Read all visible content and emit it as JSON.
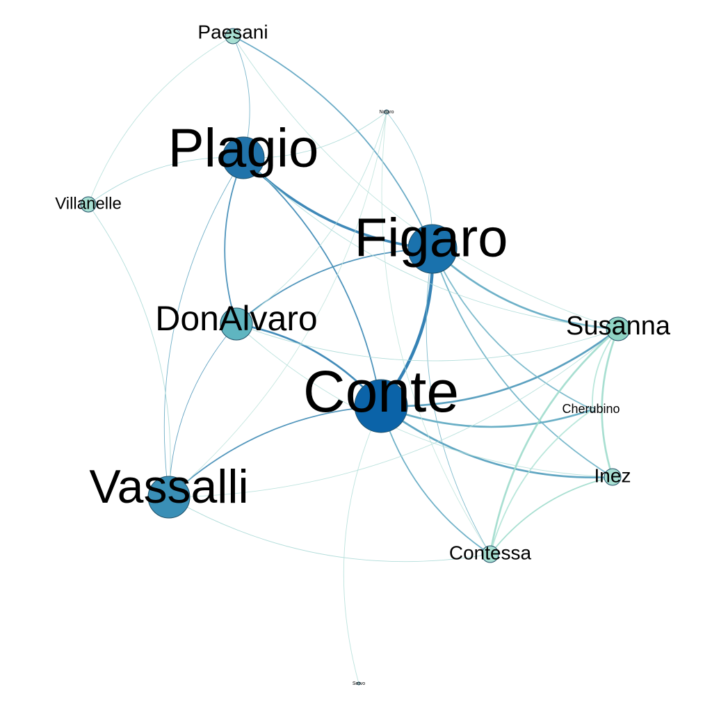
{
  "nodes": [
    {
      "id": "paesani",
      "label": "Paesani",
      "color": "#a7dfd2"
    },
    {
      "id": "plagio",
      "label": "Plagio",
      "color": "#2173aa"
    },
    {
      "id": "narrator",
      "label": "Notaro",
      "color": "#d9f0ea"
    },
    {
      "id": "villanelle",
      "label": "Villanelle",
      "color": "#a7dfd2"
    },
    {
      "id": "figaro",
      "label": "Figaro",
      "color": "#1a72ad"
    },
    {
      "id": "donalvaro",
      "label": "DonAlvaro",
      "color": "#5fb5c0"
    },
    {
      "id": "susanna",
      "label": "Susanna",
      "color": "#8fd3c4"
    },
    {
      "id": "conte",
      "label": "Conte",
      "color": "#0b63a8"
    },
    {
      "id": "cherubino",
      "label": "Cherubino",
      "color": "#d9f0ea"
    },
    {
      "id": "inez",
      "label": "Inez",
      "color": "#a7dfd2"
    },
    {
      "id": "vassalli",
      "label": "Vassalli",
      "color": "#3a8fb6"
    },
    {
      "id": "contessa",
      "label": "Contessa",
      "color": "#a7dfd2"
    },
    {
      "id": "servo",
      "label": "Servo",
      "color": "#d9f0ea"
    }
  ],
  "edges": [
    {
      "s": "conte",
      "t": "figaro",
      "weight": 5,
      "color": "#1f74ad"
    },
    {
      "s": "plagio",
      "t": "figaro",
      "weight": 4,
      "color": "#2a7cb0"
    },
    {
      "s": "conte",
      "t": "susanna",
      "weight": 3,
      "color": "#4a97b9"
    },
    {
      "s": "conte",
      "t": "inez",
      "weight": 3,
      "color": "#4f9cbb"
    },
    {
      "s": "conte",
      "t": "cherubino",
      "weight": 3,
      "color": "#5aa6c0"
    },
    {
      "s": "conte",
      "t": "donalvaro",
      "weight": 3,
      "color": "#2f7fb1"
    },
    {
      "s": "conte",
      "t": "plagio",
      "weight": 2,
      "color": "#3a87b4"
    },
    {
      "s": "conte",
      "t": "vassalli",
      "weight": 2,
      "color": "#3f8bb5"
    },
    {
      "s": "conte",
      "t": "contessa",
      "weight": 2,
      "color": "#5fa8c2"
    },
    {
      "s": "figaro",
      "t": "susanna",
      "weight": 3,
      "color": "#5ea9c2"
    },
    {
      "s": "figaro",
      "t": "inez",
      "weight": 2,
      "color": "#6cb1c6"
    },
    {
      "s": "figaro",
      "t": "cherubino",
      "weight": 2,
      "color": "#72b5c8"
    },
    {
      "s": "figaro",
      "t": "donalvaro",
      "weight": 2,
      "color": "#3f8bb5"
    },
    {
      "s": "figaro",
      "t": "contessa",
      "weight": 1,
      "color": "#6fb2c7"
    },
    {
      "s": "figaro",
      "t": "paesani",
      "weight": 2,
      "color": "#5aa2c0"
    },
    {
      "s": "figaro",
      "t": "narrator",
      "weight": 1,
      "color": "#8cc6d0"
    },
    {
      "s": "plagio",
      "t": "donalvaro",
      "weight": 2,
      "color": "#3a87b4"
    },
    {
      "s": "plagio",
      "t": "vassalli",
      "weight": 1,
      "color": "#5fa6c1"
    },
    {
      "s": "plagio",
      "t": "paesani",
      "weight": 1,
      "color": "#6caec5"
    },
    {
      "s": "plagio",
      "t": "villanelle",
      "weight": 1,
      "color": "#9fd3d4"
    },
    {
      "s": "plagio",
      "t": "susanna",
      "weight": 1,
      "color": "#aad9d6"
    },
    {
      "s": "plagio",
      "t": "narrator",
      "weight": 1,
      "color": "#aad9d6"
    },
    {
      "s": "donalvaro",
      "t": "vassalli",
      "weight": 1,
      "color": "#4f97ba"
    },
    {
      "s": "donalvaro",
      "t": "susanna",
      "weight": 1,
      "color": "#a7d8d5"
    },
    {
      "s": "donalvaro",
      "t": "narrator",
      "weight": 1,
      "color": "#b4dfd9"
    },
    {
      "s": "vassalli",
      "t": "contessa",
      "weight": 1,
      "color": "#a7d8d5"
    },
    {
      "s": "vassalli",
      "t": "susanna",
      "weight": 1,
      "color": "#b4dfd9"
    },
    {
      "s": "vassalli",
      "t": "villanelle",
      "weight": 1,
      "color": "#a7d8d5"
    },
    {
      "s": "vassalli",
      "t": "narrator",
      "weight": 1,
      "color": "#bfe3dc"
    },
    {
      "s": "susanna",
      "t": "inez",
      "weight": 3,
      "color": "#9fdccc"
    },
    {
      "s": "susanna",
      "t": "contessa",
      "weight": 3,
      "color": "#9fdccc"
    },
    {
      "s": "susanna",
      "t": "cherubino",
      "weight": 2,
      "color": "#b3e4d7"
    },
    {
      "s": "cherubino",
      "t": "contessa",
      "weight": 2,
      "color": "#b3e4d7"
    },
    {
      "s": "inez",
      "t": "contessa",
      "weight": 2,
      "color": "#9fdccc"
    },
    {
      "s": "conte",
      "t": "servo",
      "weight": 1,
      "color": "#b4dfd9"
    },
    {
      "s": "paesani",
      "t": "villanelle",
      "weight": 1,
      "color": "#b4dfd9"
    },
    {
      "s": "paesani",
      "t": "susanna",
      "weight": 1,
      "color": "#b4dfd9"
    },
    {
      "s": "narrator",
      "t": "contessa",
      "weight": 1,
      "color": "#bfe3dc"
    },
    {
      "s": "donalvaro",
      "t": "inez",
      "weight": 1,
      "color": "#b4dfd9"
    }
  ]
}
